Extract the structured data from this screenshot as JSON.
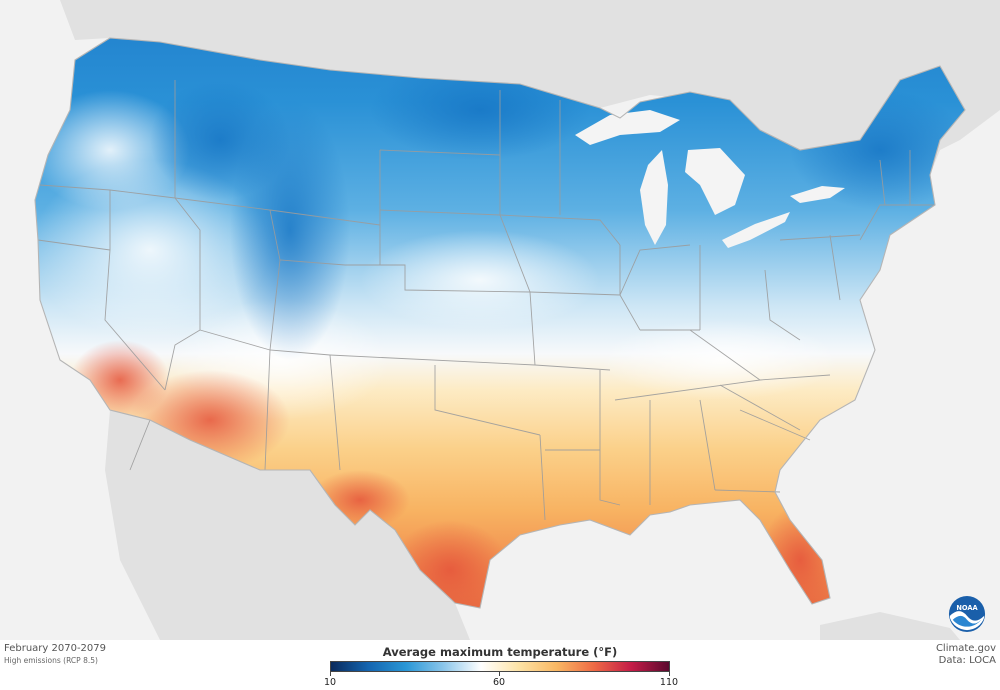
{
  "map": {
    "period": "February 2070-2079",
    "scenario": "High emissions (RCP 8.5)",
    "credit": "Climate.gov",
    "data_source": "Data: LOCA",
    "logo_text": "NOAA"
  },
  "legend": {
    "title": "Average maximum temperature (°F)",
    "min_label": "10",
    "mid_label": "60",
    "max_label": "110",
    "min_value": 10,
    "mid_value": 60,
    "max_value": 110,
    "colors": [
      "#0a2a5c",
      "#1565b0",
      "#2a97d6",
      "#8cc6ea",
      "#ffffff",
      "#fde3a6",
      "#f9b864",
      "#ee6a45",
      "#c41c47",
      "#5b0a2e"
    ]
  },
  "colors": {
    "ocean": "#f2f2f2",
    "neighbors": "#e1e1e1",
    "great_lakes": "#f4f4f4",
    "state_lines": "#9c9c9c"
  }
}
